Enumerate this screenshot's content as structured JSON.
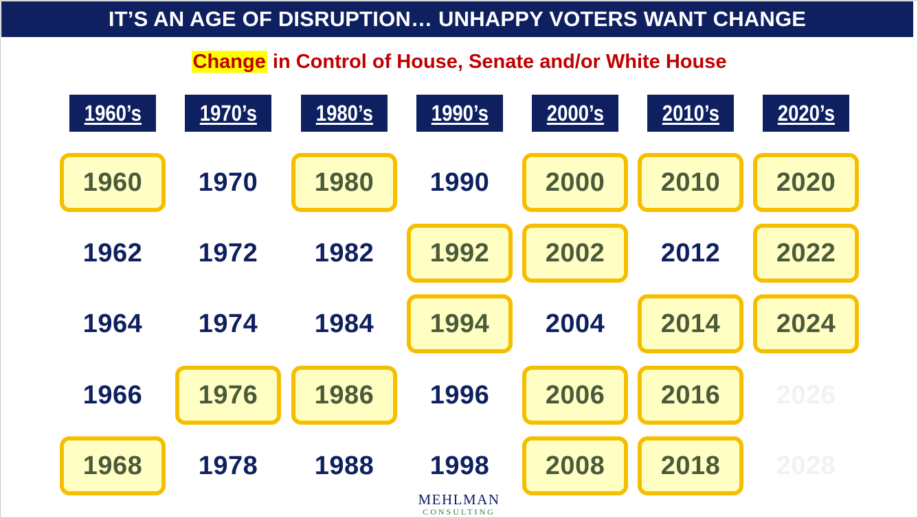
{
  "banner": {
    "title": "IT’S AN AGE OF DISRUPTION… UNHAPPY VOTERS WANT CHANGE"
  },
  "subtitle": {
    "highlight": "Change",
    "rest": " in Control of House, Senate and/or White House"
  },
  "colors": {
    "navy": "#0e2060",
    "red_text": "#c00000",
    "highlight_yellow": "#ffff00",
    "change_fill": "#ffffc4",
    "change_border": "#f6be00",
    "change_text": "#4a5a3a",
    "future_text": "#f2f2f2"
  },
  "decades": [
    {
      "label": "1960’s",
      "years": [
        {
          "year": "1960",
          "status": "change"
        },
        {
          "year": "1962",
          "status": "plain"
        },
        {
          "year": "1964",
          "status": "plain"
        },
        {
          "year": "1966",
          "status": "plain"
        },
        {
          "year": "1968",
          "status": "change"
        }
      ]
    },
    {
      "label": "1970’s",
      "years": [
        {
          "year": "1970",
          "status": "plain"
        },
        {
          "year": "1972",
          "status": "plain"
        },
        {
          "year": "1974",
          "status": "plain"
        },
        {
          "year": "1976",
          "status": "change"
        },
        {
          "year": "1978",
          "status": "plain"
        }
      ]
    },
    {
      "label": "1980’s",
      "years": [
        {
          "year": "1980",
          "status": "change"
        },
        {
          "year": "1982",
          "status": "plain"
        },
        {
          "year": "1984",
          "status": "plain"
        },
        {
          "year": "1986",
          "status": "change"
        },
        {
          "year": "1988",
          "status": "plain"
        }
      ]
    },
    {
      "label": "1990’s",
      "years": [
        {
          "year": "1990",
          "status": "plain"
        },
        {
          "year": "1992",
          "status": "change"
        },
        {
          "year": "1994",
          "status": "change"
        },
        {
          "year": "1996",
          "status": "plain"
        },
        {
          "year": "1998",
          "status": "plain"
        }
      ]
    },
    {
      "label": "2000’s",
      "years": [
        {
          "year": "2000",
          "status": "change"
        },
        {
          "year": "2002",
          "status": "change"
        },
        {
          "year": "2004",
          "status": "plain"
        },
        {
          "year": "2006",
          "status": "change"
        },
        {
          "year": "2008",
          "status": "change"
        }
      ]
    },
    {
      "label": "2010’s",
      "years": [
        {
          "year": "2010",
          "status": "change"
        },
        {
          "year": "2012",
          "status": "plain"
        },
        {
          "year": "2014",
          "status": "change"
        },
        {
          "year": "2016",
          "status": "change"
        },
        {
          "year": "2018",
          "status": "change"
        }
      ]
    },
    {
      "label": "2020’s",
      "years": [
        {
          "year": "2020",
          "status": "change"
        },
        {
          "year": "2022",
          "status": "change"
        },
        {
          "year": "2024",
          "status": "change"
        },
        {
          "year": "2026",
          "status": "future"
        },
        {
          "year": "2028",
          "status": "future"
        }
      ]
    }
  ],
  "logo": {
    "main": "MEHLMAN",
    "sub": "CONSULTING"
  }
}
